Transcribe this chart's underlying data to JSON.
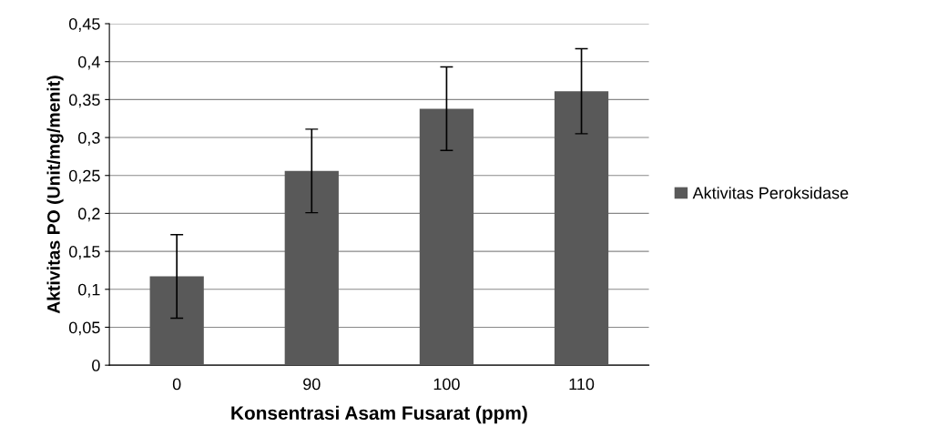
{
  "chart_data": {
    "type": "bar",
    "xlabel": "Konsentrasi Asam Fusarat (ppm)",
    "ylabel": "Aktivitas PO (Unit/mg/menit)",
    "categories": [
      "0",
      "90",
      "100",
      "110"
    ],
    "series": [
      {
        "name": "Aktivitas Peroksidase",
        "color": "#595959",
        "values": [
          0.117,
          0.256,
          0.338,
          0.361
        ],
        "errors": [
          0.055,
          0.055,
          0.055,
          0.056
        ]
      }
    ],
    "ylim": [
      0,
      0.45
    ],
    "yticks": [
      0,
      {
        "value": 0.05,
        "label": "0,05"
      },
      {
        "value": 0.1,
        "label": "0,1"
      },
      {
        "value": 0.15,
        "label": "0,15"
      },
      {
        "value": 0.2,
        "label": "0,2"
      },
      {
        "value": 0.25,
        "label": "0,25"
      },
      {
        "value": 0.3,
        "label": "0,3"
      },
      {
        "value": 0.35,
        "label": "0,35"
      },
      {
        "value": 0.4,
        "label": "0,4"
      },
      {
        "value": 0.45,
        "label": "0,45"
      }
    ],
    "grid": "y",
    "legend": "right"
  }
}
